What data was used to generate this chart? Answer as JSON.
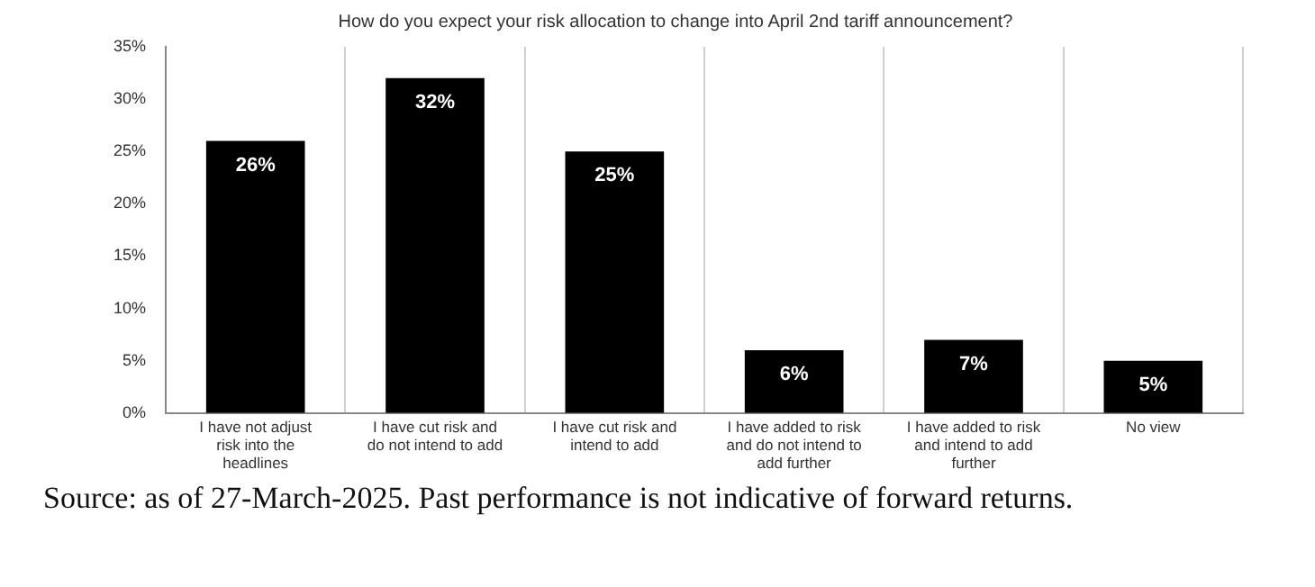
{
  "chart_data": {
    "type": "bar",
    "title": "How do you expect your risk allocation to change into April 2nd tariff announcement?",
    "categories": [
      "I have not adjust risk into the headlines",
      "I have cut risk and do not intend to add",
      "I have cut risk and intend to add",
      "I have added to risk and do not intend to add further",
      "I have added to risk and intend to add further",
      "No view"
    ],
    "values": [
      26,
      32,
      25,
      6,
      7,
      5
    ],
    "color": "#000000",
    "value_labels": [
      "26%",
      "32%",
      "25%",
      "6%",
      "7%",
      "5%"
    ],
    "ylim": [
      0,
      35
    ],
    "yticks": [
      {
        "value": 0,
        "label": "0%"
      },
      {
        "value": 5,
        "label": "5%"
      },
      {
        "value": 10,
        "label": "10%"
      },
      {
        "value": 15,
        "label": "15%"
      },
      {
        "value": 20,
        "label": "20%"
      },
      {
        "value": 25,
        "label": "25%"
      },
      {
        "value": 30,
        "label": "30%"
      },
      {
        "value": 35,
        "label": "35%"
      }
    ],
    "grid": "x",
    "legend": false,
    "annotations": [
      "Source: as of 27-March-2025. Past performance is not indicative of forward returns."
    ]
  }
}
